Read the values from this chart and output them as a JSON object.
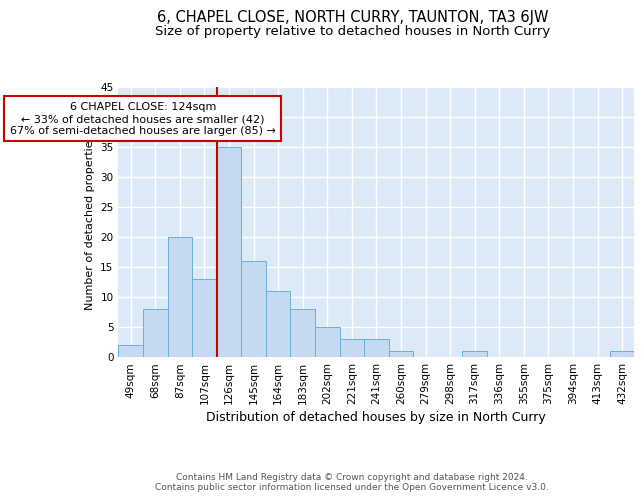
{
  "title": "6, CHAPEL CLOSE, NORTH CURRY, TAUNTON, TA3 6JW",
  "subtitle": "Size of property relative to detached houses in North Curry",
  "xlabel": "Distribution of detached houses by size in North Curry",
  "ylabel": "Number of detached properties",
  "categories": [
    "49sqm",
    "68sqm",
    "87sqm",
    "107sqm",
    "126sqm",
    "145sqm",
    "164sqm",
    "183sqm",
    "202sqm",
    "221sqm",
    "241sqm",
    "260sqm",
    "279sqm",
    "298sqm",
    "317sqm",
    "336sqm",
    "355sqm",
    "375sqm",
    "394sqm",
    "413sqm",
    "432sqm"
  ],
  "values": [
    2,
    8,
    20,
    13,
    35,
    16,
    11,
    8,
    5,
    3,
    3,
    1,
    0,
    0,
    1,
    0,
    0,
    0,
    0,
    0,
    1
  ],
  "bar_color": "#c5d9f0",
  "bar_edgecolor": "#6baed6",
  "vline_index": 4,
  "vline_color": "#cc0000",
  "ann_line1": "6 CHAPEL CLOSE: 124sqm",
  "ann_line2": "← 33% of detached houses are smaller (42)",
  "ann_line3": "67% of semi-detached houses are larger (85) →",
  "annotation_box_color": "#cc0000",
  "annotation_box_fill": "#ffffff",
  "footer_line1": "Contains HM Land Registry data © Crown copyright and database right 2024.",
  "footer_line2": "Contains public sector information licensed under the Open Government Licence v3.0.",
  "ylim": [
    0,
    45
  ],
  "yticks": [
    0,
    5,
    10,
    15,
    20,
    25,
    30,
    35,
    40,
    45
  ],
  "bg_color": "#dce9f7",
  "grid_color": "#ffffff",
  "title_fontsize": 10.5,
  "subtitle_fontsize": 9.5,
  "xlabel_fontsize": 9,
  "ylabel_fontsize": 8,
  "tick_fontsize": 7.5,
  "ann_fontsize": 8,
  "footer_fontsize": 6.5
}
